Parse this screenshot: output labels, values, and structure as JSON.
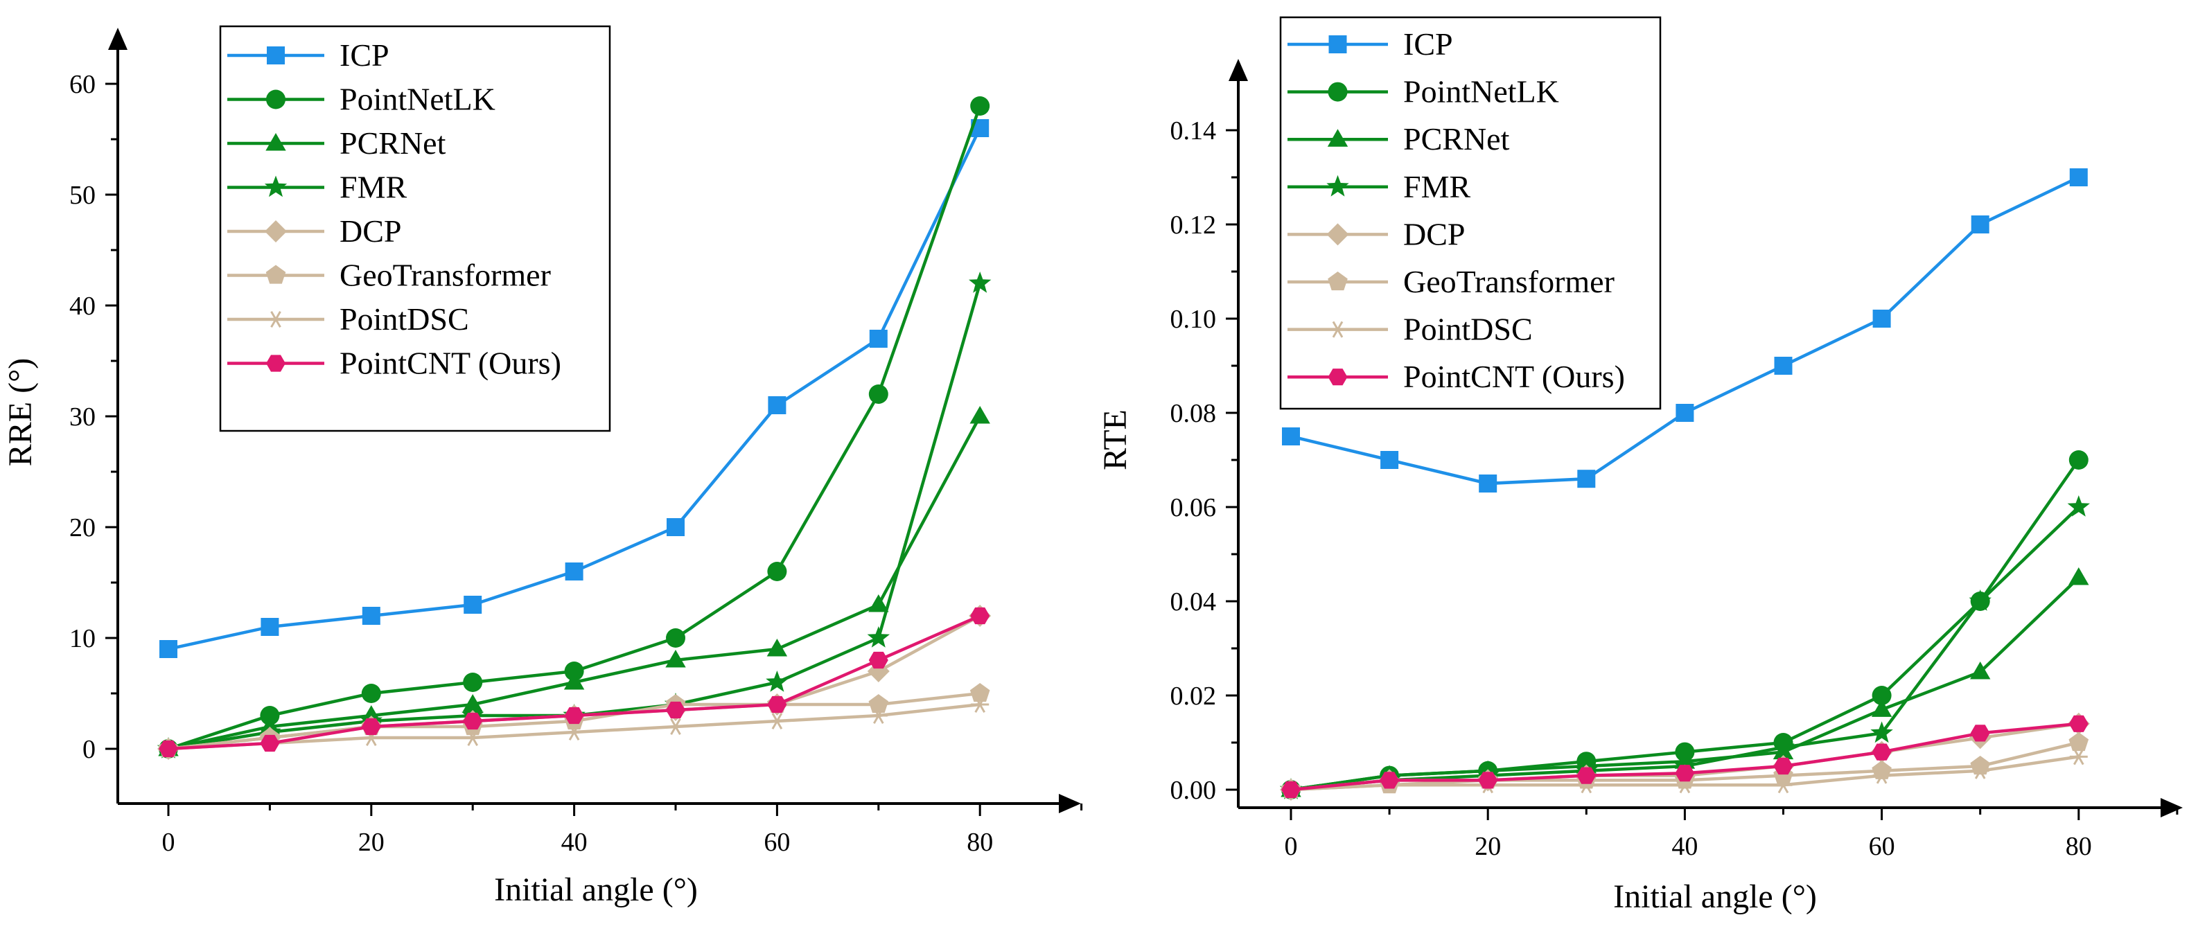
{
  "chart_data": [
    {
      "type": "line",
      "xlabel": "Initial angle (°)",
      "ylabel": "RRE (°)",
      "xlim": [
        -6,
        91
      ],
      "ylim": [
        -5,
        65
      ],
      "xticks": [
        0,
        20,
        40,
        60,
        80
      ],
      "yticks": [
        0,
        10,
        20,
        30,
        40,
        50,
        60
      ],
      "ytick_labels": [
        "0",
        "10",
        "20",
        "30",
        "40",
        "50",
        "60"
      ],
      "legend_position": "top-left",
      "x": [
        0,
        10,
        20,
        30,
        40,
        50,
        60,
        70,
        80
      ],
      "series": [
        {
          "name": "ICP",
          "color": "#1E90E8",
          "marker": "square",
          "values": [
            9,
            11,
            12,
            13,
            16,
            20,
            31,
            37,
            56
          ]
        },
        {
          "name": "PointNetLK",
          "color": "#0A8C1E",
          "marker": "circle",
          "values": [
            0,
            3,
            5,
            6,
            7,
            10,
            16,
            32,
            58
          ]
        },
        {
          "name": "PCRNet",
          "color": "#0A8C1E",
          "marker": "triangle",
          "values": [
            0,
            2,
            3,
            4,
            6,
            8,
            9,
            13,
            30
          ]
        },
        {
          "name": "FMR",
          "color": "#0A8C1E",
          "marker": "star",
          "values": [
            0,
            1.5,
            2.5,
            3,
            3,
            4,
            6,
            10,
            42
          ]
        },
        {
          "name": "DCP",
          "color": "#CDB89C",
          "marker": "diamond",
          "values": [
            0,
            1,
            2,
            2.5,
            3,
            3.5,
            4,
            7,
            12
          ]
        },
        {
          "name": "GeoTransformer",
          "color": "#CDB89C",
          "marker": "pentagon",
          "values": [
            0,
            1,
            2,
            2,
            2.5,
            4,
            4,
            4,
            5
          ]
        },
        {
          "name": "PointDSC",
          "color": "#CDB89C",
          "marker": "asterisk",
          "values": [
            0,
            0.5,
            1,
            1,
            1.5,
            2,
            2.5,
            3,
            4
          ]
        },
        {
          "name": "PointCNT (Ours)",
          "color": "#E0186E",
          "marker": "hexagon",
          "values": [
            0,
            0.5,
            2,
            2.5,
            3,
            3.5,
            4,
            8,
            12
          ]
        }
      ]
    },
    {
      "type": "line",
      "xlabel": "Initial angle (°)",
      "ylabel": "RTE",
      "xlim": [
        -6,
        91
      ],
      "ylim": [
        -0.005,
        0.155
      ],
      "xticks": [
        0,
        20,
        40,
        60,
        80
      ],
      "yticks": [
        0,
        0.02,
        0.04,
        0.06,
        0.08,
        0.1,
        0.12,
        0.14
      ],
      "ytick_labels": [
        "0.00",
        "0.02",
        "0.04",
        "0.06",
        "0.08",
        "0.10",
        "0.12",
        "0.14"
      ],
      "legend_position": "top-left",
      "x": [
        0,
        10,
        20,
        30,
        40,
        50,
        60,
        70,
        80
      ],
      "series": [
        {
          "name": "ICP",
          "color": "#1E90E8",
          "marker": "square",
          "values": [
            0.075,
            0.07,
            0.065,
            0.066,
            0.08,
            0.09,
            0.1,
            0.12,
            0.13
          ]
        },
        {
          "name": "PointNetLK",
          "color": "#0A8C1E",
          "marker": "circle",
          "values": [
            0,
            0.003,
            0.004,
            0.006,
            0.008,
            0.01,
            0.02,
            0.04,
            0.07
          ]
        },
        {
          "name": "PCRNet",
          "color": "#0A8C1E",
          "marker": "triangle",
          "values": [
            0,
            0.003,
            0.004,
            0.005,
            0.006,
            0.008,
            0.017,
            0.025,
            0.045
          ]
        },
        {
          "name": "FMR",
          "color": "#0A8C1E",
          "marker": "star",
          "values": [
            0,
            0.002,
            0.003,
            0.004,
            0.005,
            0.009,
            0.012,
            0.04,
            0.06
          ]
        },
        {
          "name": "DCP",
          "color": "#CDB89C",
          "marker": "diamond",
          "values": [
            0,
            0.002,
            0.002,
            0.003,
            0.003,
            0.005,
            0.008,
            0.011,
            0.014
          ]
        },
        {
          "name": "GeoTransformer",
          "color": "#CDB89C",
          "marker": "pentagon",
          "values": [
            0,
            0.001,
            0.002,
            0.002,
            0.002,
            0.003,
            0.004,
            0.005,
            0.01
          ]
        },
        {
          "name": "PointDSC",
          "color": "#CDB89C",
          "marker": "asterisk",
          "values": [
            0,
            0.001,
            0.001,
            0.001,
            0.001,
            0.001,
            0.003,
            0.004,
            0.007
          ]
        },
        {
          "name": "PointCNT (Ours)",
          "color": "#E0186E",
          "marker": "hexagon",
          "values": [
            0,
            0.002,
            0.002,
            0.003,
            0.0035,
            0.005,
            0.008,
            0.012,
            0.014
          ]
        }
      ]
    }
  ]
}
